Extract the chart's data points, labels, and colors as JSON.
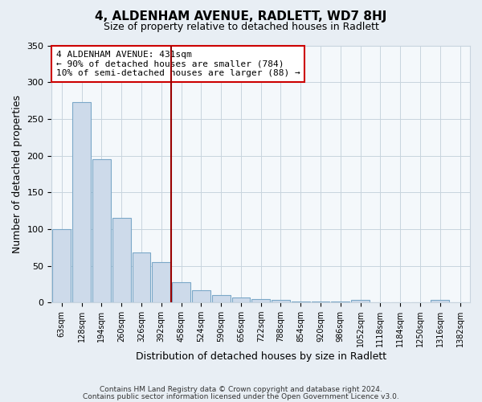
{
  "title": "4, ALDENHAM AVENUE, RADLETT, WD7 8HJ",
  "subtitle": "Size of property relative to detached houses in Radlett",
  "xlabel": "Distribution of detached houses by size in Radlett",
  "ylabel": "Number of detached properties",
  "bar_labels": [
    "63sqm",
    "128sqm",
    "194sqm",
    "260sqm",
    "326sqm",
    "392sqm",
    "458sqm",
    "524sqm",
    "590sqm",
    "656sqm",
    "722sqm",
    "788sqm",
    "854sqm",
    "920sqm",
    "986sqm",
    "1052sqm",
    "1118sqm",
    "1184sqm",
    "1250sqm",
    "1316sqm",
    "1382sqm"
  ],
  "bar_values": [
    100,
    273,
    195,
    115,
    68,
    55,
    28,
    17,
    10,
    7,
    5,
    4,
    1,
    1,
    1,
    4,
    0,
    0,
    0,
    4,
    0
  ],
  "bar_color": "#cddaea",
  "bar_edge_color": "#7ba8c8",
  "vline_color": "#990000",
  "vline_x_idx": 5.5,
  "annotation_text": "4 ALDENHAM AVENUE: 431sqm\n← 90% of detached houses are smaller (784)\n10% of semi-detached houses are larger (88) →",
  "annotation_box_color": "white",
  "annotation_box_edge": "#cc0000",
  "ylim": [
    0,
    350
  ],
  "yticks": [
    0,
    50,
    100,
    150,
    200,
    250,
    300,
    350
  ],
  "footer1": "Contains HM Land Registry data © Crown copyright and database right 2024.",
  "footer2": "Contains public sector information licensed under the Open Government Licence v3.0.",
  "bg_color": "#e8eef4",
  "plot_bg_color": "#f4f8fb",
  "grid_color": "#c8d4de"
}
